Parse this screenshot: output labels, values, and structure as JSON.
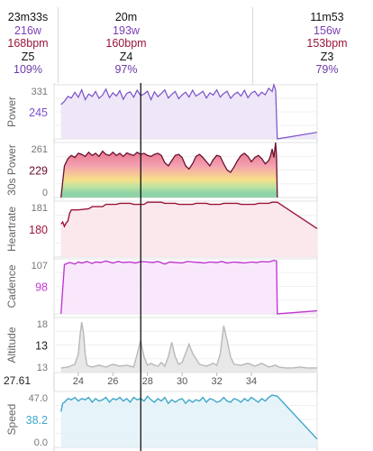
{
  "segments": [
    {
      "duration": "23m33s",
      "power": "216w",
      "heartrate": "168bpm",
      "zone": "Z5",
      "percent": "109%"
    },
    {
      "duration": "20m",
      "power": "193w",
      "heartrate": "160bpm",
      "zone": "Z4",
      "percent": "97%"
    },
    {
      "duration": "11m53",
      "power": "156w",
      "heartrate": "153bpm",
      "zone": "Z3",
      "percent": "79%"
    }
  ],
  "cursor_label": "27.61",
  "x_ticks": [
    "24",
    "26",
    "28",
    "30",
    "32",
    "34"
  ],
  "panels": [
    {
      "name": "Power",
      "max_label": "331",
      "value_label": "245",
      "min_label": "",
      "color": "#7b4fc9",
      "fill": "#ece4f7"
    },
    {
      "name": "30s Power",
      "max_label": "261",
      "value_label": "229",
      "min_label": "0",
      "color": "#6a1030",
      "fill": "#f5b8c2"
    },
    {
      "name": "Heartrate",
      "max_label": "181",
      "value_label": "180",
      "min_label": "",
      "color": "#9b1538",
      "fill": "#fbe6ea"
    },
    {
      "name": "Cadence",
      "max_label": "107",
      "value_label": "98",
      "min_label": "",
      "color": "#c03ad0",
      "fill": "#f8e6fb"
    },
    {
      "name": "Altitude",
      "max_label": "18",
      "value_label": "13",
      "min_label": "13",
      "color": "#b8b8b8",
      "fill": "#e6e6e6"
    },
    {
      "name": "Speed",
      "max_label": "47.0",
      "value_label": "38.2",
      "min_label": "0.0",
      "color": "#3fa7c8",
      "fill": "#e3f3f9"
    }
  ],
  "chart_data": [
    {
      "type": "line",
      "title": "",
      "ylabel": "Power",
      "xlim": [
        22.6,
        37.8
      ],
      "ylim": [
        0,
        331
      ],
      "x": [
        23.0,
        23.2,
        23.4,
        23.6,
        23.8,
        24.0,
        24.2,
        24.4,
        24.6,
        24.8,
        25.0,
        25.2,
        25.4,
        25.6,
        25.8,
        26.0,
        26.2,
        26.4,
        26.6,
        26.8,
        27.0,
        27.2,
        27.4,
        27.6,
        27.8,
        28.0,
        28.2,
        28.4,
        28.6,
        28.8,
        29.0,
        29.2,
        29.4,
        29.6,
        29.8,
        30.0,
        30.2,
        30.4,
        30.6,
        30.8,
        31.0,
        31.2,
        31.4,
        31.6,
        31.8,
        32.0,
        32.2,
        32.4,
        32.6,
        32.8,
        33.0,
        33.2,
        33.4,
        33.6,
        33.8,
        34.0,
        34.2,
        34.4,
        34.6,
        34.8,
        35.0,
        35.2,
        35.3,
        35.4,
        35.5,
        37.8
      ],
      "values": [
        210,
        230,
        260,
        250,
        285,
        255,
        300,
        240,
        275,
        260,
        290,
        248,
        268,
        305,
        252,
        282,
        262,
        295,
        242,
        278,
        288,
        255,
        298,
        265,
        275,
        292,
        240,
        288,
        258,
        278,
        300,
        250,
        272,
        290,
        246,
        270,
        286,
        256,
        298,
        262,
        276,
        292,
        250,
        282,
        268,
        300,
        256,
        278,
        292,
        248,
        272,
        286,
        262,
        298,
        252,
        280,
        292,
        262,
        286,
        270,
        310,
        290,
        331,
        300,
        0,
        40
      ]
    },
    {
      "type": "area",
      "title": "",
      "ylabel": "30s Power",
      "xlim": [
        22.6,
        37.8
      ],
      "ylim": [
        0,
        261
      ],
      "x": [
        23.0,
        23.2,
        23.4,
        23.6,
        23.8,
        24.0,
        24.2,
        24.4,
        24.6,
        24.8,
        25.0,
        25.2,
        25.4,
        25.6,
        25.8,
        26.0,
        26.2,
        26.4,
        26.6,
        26.8,
        27.0,
        27.2,
        27.4,
        27.6,
        27.8,
        28.0,
        28.2,
        28.4,
        28.6,
        28.8,
        29.0,
        29.2,
        29.4,
        29.6,
        29.8,
        30.0,
        30.2,
        30.4,
        30.6,
        30.8,
        31.0,
        31.2,
        31.4,
        31.6,
        31.8,
        32.0,
        32.2,
        32.4,
        32.6,
        32.8,
        33.0,
        33.2,
        33.4,
        33.6,
        33.8,
        34.0,
        34.2,
        34.4,
        34.6,
        34.8,
        35.0,
        35.1,
        35.2,
        35.3,
        35.4,
        35.45,
        35.5
      ],
      "values": [
        0,
        150,
        185,
        200,
        190,
        210,
        205,
        195,
        215,
        200,
        210,
        195,
        220,
        205,
        200,
        215,
        200,
        210,
        195,
        212,
        205,
        200,
        215,
        205,
        210,
        200,
        195,
        205,
        210,
        200,
        165,
        150,
        175,
        200,
        205,
        190,
        150,
        135,
        160,
        195,
        205,
        190,
        170,
        150,
        180,
        200,
        195,
        160,
        130,
        120,
        145,
        175,
        200,
        210,
        195,
        170,
        190,
        200,
        185,
        160,
        175,
        195,
        230,
        190,
        261,
        200,
        0
      ]
    },
    {
      "type": "line",
      "title": "",
      "ylabel": "Heartrate",
      "xlim": [
        22.6,
        37.8
      ],
      "ylim": [
        130,
        181
      ],
      "x": [
        23.0,
        23.1,
        23.2,
        23.3,
        23.4,
        23.5,
        23.6,
        23.8,
        24.0,
        24.6,
        24.8,
        25.4,
        25.6,
        26.2,
        26.4,
        27.0,
        27.2,
        27.8,
        28.0,
        28.8,
        29.0,
        29.6,
        29.8,
        30.6,
        30.8,
        31.4,
        31.6,
        32.2,
        32.4,
        33.2,
        33.4,
        34.2,
        34.4,
        35.0,
        35.2,
        35.5,
        37.8
      ],
      "values": [
        160,
        162,
        158,
        161,
        163,
        170,
        173,
        173,
        173,
        174,
        176,
        176,
        178,
        178,
        179,
        179,
        178,
        178,
        180,
        180,
        179,
        179,
        178,
        178,
        179,
        179,
        178,
        178,
        179,
        179,
        178,
        178,
        179,
        179,
        180,
        180,
        156
      ]
    },
    {
      "type": "line",
      "title": "",
      "ylabel": "Cadence",
      "xlim": [
        22.6,
        37.8
      ],
      "ylim": [
        0,
        107
      ],
      "x": [
        23.0,
        23.2,
        23.5,
        23.8,
        24.0,
        24.2,
        24.5,
        24.8,
        25.0,
        25.3,
        25.6,
        26.0,
        26.3,
        26.6,
        27.0,
        27.3,
        27.6,
        28.0,
        28.3,
        28.6,
        29.0,
        29.3,
        29.6,
        30.0,
        30.3,
        30.6,
        31.0,
        31.3,
        31.6,
        32.0,
        32.3,
        32.6,
        33.0,
        33.3,
        33.6,
        34.0,
        34.3,
        34.6,
        35.0,
        35.3,
        35.45,
        35.5,
        37.8
      ],
      "values": [
        0,
        96,
        100,
        97,
        101,
        99,
        102,
        98,
        101,
        100,
        103,
        99,
        102,
        100,
        101,
        99,
        102,
        101,
        100,
        102,
        97,
        101,
        100,
        99,
        102,
        101,
        100,
        99,
        101,
        100,
        102,
        99,
        101,
        100,
        99,
        101,
        100,
        102,
        101,
        104,
        103,
        0,
        6
      ]
    },
    {
      "type": "area",
      "title": "",
      "ylabel": "Altitude",
      "xlim": [
        22.6,
        37.8
      ],
      "ylim": [
        12.5,
        18.5
      ],
      "x": [
        23.0,
        23.4,
        23.8,
        24.0,
        24.1,
        24.2,
        24.3,
        24.4,
        24.5,
        24.8,
        25.2,
        25.6,
        26.0,
        26.4,
        26.8,
        27.0,
        27.2,
        27.4,
        27.6,
        27.8,
        28.0,
        28.2,
        28.4,
        28.6,
        28.8,
        29.0,
        29.2,
        29.4,
        29.6,
        29.8,
        30.0,
        30.2,
        30.4,
        30.6,
        31.0,
        31.4,
        31.8,
        32.0,
        32.2,
        32.4,
        32.6,
        32.8,
        33.0,
        33.4,
        33.8,
        34.2,
        34.6,
        35.0,
        35.4,
        35.6,
        36.0,
        36.4,
        36.8,
        37.2,
        37.8
      ],
      "values": [
        13,
        13.1,
        13.4,
        14.5,
        16.5,
        18,
        16.8,
        14.5,
        13.3,
        13.1,
        13.3,
        13.1,
        13.4,
        13.2,
        13.3,
        13.2,
        13.1,
        14.5,
        16,
        14.2,
        13.3,
        13.5,
        13.3,
        13.2,
        13.6,
        13.2,
        14.2,
        15.8,
        14.2,
        13.4,
        13.6,
        14.6,
        15.6,
        14.6,
        13.4,
        13.2,
        13.5,
        13.3,
        14.5,
        17.6,
        16,
        14.2,
        13.4,
        13.3,
        13.5,
        13.2,
        13.5,
        13.1,
        13.3,
        13.1,
        13,
        13,
        13.1,
        13,
        13
      ]
    },
    {
      "type": "line",
      "title": "",
      "ylabel": "Speed",
      "xlim": [
        22.6,
        37.8
      ],
      "ylim": [
        0,
        47
      ],
      "x": [
        23.0,
        23.1,
        23.2,
        23.4,
        23.6,
        23.8,
        24.0,
        24.2,
        24.4,
        24.6,
        24.8,
        25.0,
        25.2,
        25.4,
        25.6,
        25.8,
        26.0,
        26.2,
        26.4,
        26.6,
        26.8,
        27.0,
        27.2,
        27.4,
        27.6,
        27.8,
        28.0,
        28.2,
        28.4,
        28.6,
        28.8,
        29.0,
        29.2,
        29.4,
        29.6,
        29.8,
        30.0,
        30.2,
        30.4,
        30.6,
        30.8,
        31.0,
        31.2,
        31.4,
        31.6,
        31.8,
        32.0,
        32.2,
        32.4,
        32.6,
        32.8,
        33.0,
        33.2,
        33.4,
        33.6,
        33.8,
        34.0,
        34.2,
        34.4,
        34.6,
        34.8,
        35.0,
        35.2,
        35.5,
        37.8
      ],
      "values": [
        30,
        37,
        38,
        41,
        40,
        42,
        39,
        41,
        40,
        42,
        38,
        41,
        39,
        40,
        42,
        38,
        41,
        40,
        42,
        39,
        41,
        38,
        42,
        40,
        41,
        39,
        43,
        40,
        38,
        41,
        39,
        42,
        37,
        40,
        38,
        40,
        41,
        37,
        40,
        38,
        40,
        39,
        42,
        38,
        41,
        40,
        38,
        39,
        42,
        39,
        38,
        41,
        40,
        38,
        41,
        39,
        42,
        40,
        38,
        41,
        39,
        42,
        44,
        43,
        7
      ]
    }
  ]
}
